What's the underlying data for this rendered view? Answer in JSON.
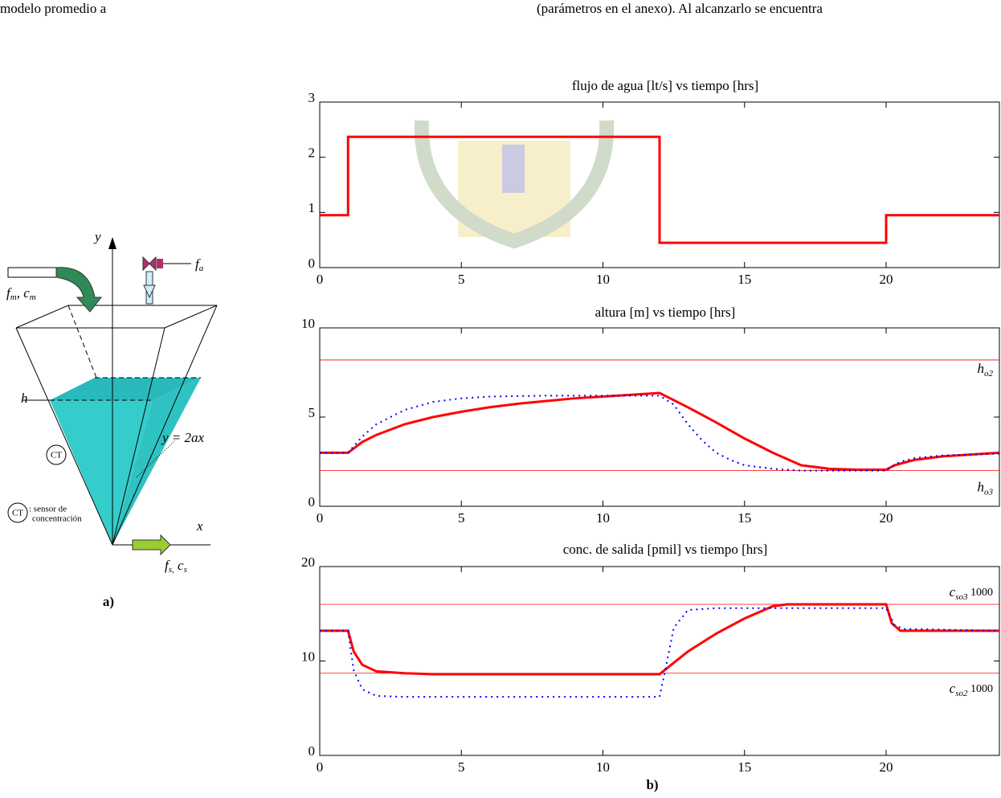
{
  "header": {
    "text_left": "modelo promedio a",
    "text_right": "(parámetros en el anexo). Al alcanzarlo se encuentra"
  },
  "diagram": {
    "y_axis": "y",
    "x_axis": "x",
    "valve": "f",
    "valve_sub": "a",
    "inlet": "f",
    "inlet_sub": "m",
    "inlet_sep": ", c",
    "inlet_sub2": "m",
    "level": "h",
    "sensor": "CT",
    "edge": "y = 2ax",
    "legend_sensor": "CT",
    "legend_text": ": sensor de",
    "legend_text2": "concentración",
    "outlet": "f",
    "outlet_sub": "s,",
    "outlet_sep": " c",
    "outlet_sub2": "s",
    "caption": "a)"
  },
  "caption": "b)",
  "chart_data": [
    {
      "type": "line",
      "title": "flujo de agua [lt/s] vs tiempo [hrs]",
      "xlim": [
        0,
        24
      ],
      "xticks": [
        0,
        5,
        10,
        15,
        20
      ],
      "ylim": [
        0,
        3
      ],
      "yticks": [
        0,
        1,
        2,
        3
      ],
      "series": [
        {
          "color": "#ff0000",
          "style": "solid",
          "x": [
            0,
            1,
            1,
            12,
            12,
            20,
            20,
            24
          ],
          "values": [
            0.95,
            0.95,
            2.37,
            2.37,
            0.45,
            0.45,
            0.95,
            0.95
          ]
        }
      ]
    },
    {
      "type": "line",
      "title": "altura [m] vs tiempo [hrs]",
      "xlim": [
        0,
        24
      ],
      "xticks": [
        0,
        5,
        10,
        15,
        20
      ],
      "ylim": [
        0,
        10
      ],
      "yticks": [
        0,
        5,
        10
      ],
      "hlines": [
        {
          "value": 8.2,
          "color": "#ff0000",
          "label": "h",
          "sub": "o2"
        },
        {
          "value": 2.0,
          "color": "#ff0000",
          "label": "h",
          "sub": "o3"
        }
      ],
      "series": [
        {
          "color": "#ff0000",
          "style": "solid",
          "x": [
            0,
            1,
            1.5,
            2,
            3,
            4,
            5,
            6,
            7,
            8,
            9,
            10,
            11,
            12,
            13,
            14,
            15,
            16,
            17,
            18,
            19,
            20,
            20.3,
            21,
            22,
            23,
            24
          ],
          "values": [
            3,
            3,
            3.6,
            4.0,
            4.6,
            5.0,
            5.3,
            5.55,
            5.75,
            5.9,
            6.05,
            6.15,
            6.25,
            6.35,
            5.55,
            4.7,
            3.8,
            3.0,
            2.3,
            2.1,
            2.05,
            2.05,
            2.3,
            2.6,
            2.8,
            2.9,
            3.0
          ]
        },
        {
          "color": "#0000ff",
          "style": "dotted",
          "x": [
            0,
            1,
            1.5,
            2,
            3,
            4,
            5,
            6,
            8,
            10,
            12,
            12.5,
            13,
            13.5,
            14,
            14.5,
            15,
            16,
            17,
            20,
            20.5,
            21,
            22,
            24
          ],
          "values": [
            3,
            3,
            3.9,
            4.6,
            5.4,
            5.85,
            6.05,
            6.15,
            6.2,
            6.2,
            6.2,
            5.7,
            4.6,
            3.7,
            3.0,
            2.6,
            2.3,
            2.1,
            2.0,
            2.0,
            2.5,
            2.7,
            2.85,
            2.95
          ]
        }
      ]
    },
    {
      "type": "line",
      "title": "conc. de salida [pmil] vs tiempo [hrs]",
      "xlim": [
        0,
        24
      ],
      "xticks": [
        0,
        5,
        10,
        15,
        20
      ],
      "ylim": [
        0,
        20
      ],
      "yticks": [
        0,
        10,
        20
      ],
      "hlines": [
        {
          "value": 16.0,
          "color": "#ff0000",
          "label": "c",
          "sub": "so3",
          "suffix": " 1000"
        },
        {
          "value": 8.7,
          "color": "#ff0000",
          "label": "c",
          "sub": "so2",
          "suffix": " 1000"
        }
      ],
      "series": [
        {
          "color": "#ff0000",
          "style": "solid",
          "x": [
            0,
            1,
            1.2,
            1.5,
            2,
            3,
            4,
            12,
            12.5,
            13,
            14,
            15,
            16,
            16.5,
            20,
            20.2,
            20.5,
            24
          ],
          "values": [
            13.2,
            13.2,
            11,
            9.6,
            8.9,
            8.7,
            8.6,
            8.6,
            9.8,
            11,
            12.9,
            14.5,
            15.8,
            16,
            16,
            14,
            13.2,
            13.2
          ]
        },
        {
          "color": "#0000ff",
          "style": "dotted",
          "x": [
            0,
            1,
            1.2,
            1.5,
            2,
            3,
            12,
            12.2,
            12.5,
            13,
            14,
            20,
            20.3,
            20.6,
            24
          ],
          "values": [
            13.2,
            13.2,
            9,
            7,
            6.3,
            6.2,
            6.2,
            9,
            13.5,
            15.4,
            15.6,
            15.6,
            13.8,
            13.4,
            13.2
          ]
        }
      ]
    }
  ]
}
